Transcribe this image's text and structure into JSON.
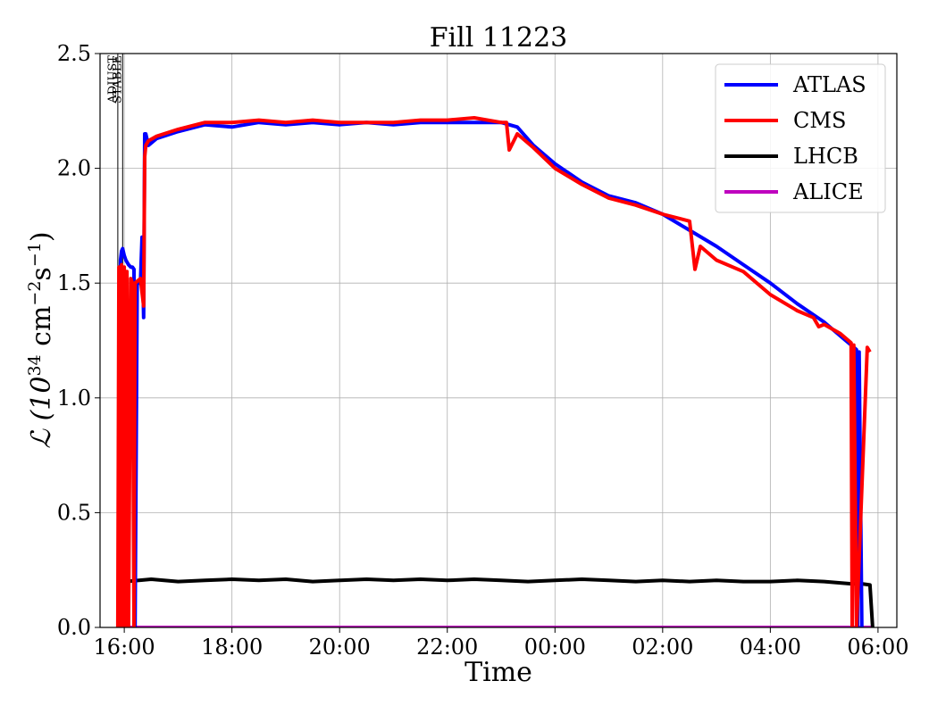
{
  "chart_data": {
    "type": "line",
    "title": "Fill 11223",
    "xlabel": "Time",
    "ylabel_main": "ℒ (10",
    "ylabel_exp1": "34",
    "ylabel_mid": " cm",
    "ylabel_exp2": "−2",
    "ylabel_s": "s",
    "ylabel_exp3": "−1",
    "ylabel_end": ")",
    "x_unit": "hours since 00:00 of the fill start day",
    "xlim": [
      15.55,
      30.35
    ],
    "ylim": [
      0,
      2.5
    ],
    "x_ticks": [
      16,
      18,
      20,
      22,
      24,
      26,
      28,
      30
    ],
    "x_tick_labels": [
      "16:00",
      "18:00",
      "20:00",
      "22:00",
      "00:00",
      "02:00",
      "04:00",
      "06:00"
    ],
    "y_ticks": [
      0,
      0.5,
      1.0,
      1.5,
      2.0,
      2.5
    ],
    "y_tick_labels": [
      "0.0",
      "0.5",
      "1.0",
      "1.5",
      "2.0",
      "2.5"
    ],
    "grid": true,
    "legend_position": "top-right",
    "markers": [
      {
        "x": 15.88,
        "label": "ADJUST"
      },
      {
        "x": 15.97,
        "label": "STABLE"
      }
    ],
    "colors": {
      "ATLAS": "#0000ff",
      "CMS": "#ff0000",
      "LHCB": "#000000",
      "ALICE": "#bf00bf"
    },
    "series": [
      {
        "name": "ATLAS",
        "x": [
          15.9,
          15.93,
          15.95,
          15.97,
          16.0,
          16.03,
          16.08,
          16.12,
          16.15,
          16.18,
          16.2,
          16.24,
          16.3,
          16.33,
          16.36,
          16.38,
          16.4,
          16.45,
          16.6,
          17.0,
          17.5,
          18.0,
          18.5,
          19.0,
          19.5,
          20.0,
          20.5,
          21.0,
          21.5,
          22.0,
          22.5,
          23.0,
          23.3,
          23.6,
          24.0,
          24.5,
          25.0,
          25.5,
          26.0,
          26.5,
          27.0,
          27.5,
          28.0,
          28.5,
          29.0,
          29.3,
          29.5,
          29.6,
          29.62,
          29.65,
          29.7
        ],
        "y": [
          0.0,
          1.6,
          1.64,
          1.65,
          1.62,
          1.6,
          1.58,
          1.57,
          1.57,
          1.56,
          0.0,
          1.5,
          1.5,
          1.7,
          1.35,
          2.15,
          2.15,
          2.1,
          2.13,
          2.16,
          2.19,
          2.18,
          2.2,
          2.19,
          2.2,
          2.19,
          2.2,
          2.19,
          2.2,
          2.2,
          2.2,
          2.2,
          2.18,
          2.1,
          2.02,
          1.94,
          1.88,
          1.85,
          1.8,
          1.73,
          1.66,
          1.58,
          1.5,
          1.41,
          1.33,
          1.27,
          1.23,
          1.21,
          0.0,
          1.2,
          0.0
        ]
      },
      {
        "name": "CMS",
        "x": [
          15.88,
          15.9,
          15.92,
          15.95,
          15.97,
          16.0,
          16.03,
          16.05,
          16.08,
          16.12,
          16.15,
          16.18,
          16.2,
          16.3,
          16.36,
          16.38,
          16.4,
          16.45,
          16.6,
          17.0,
          17.5,
          18.0,
          18.5,
          19.0,
          19.5,
          20.0,
          20.5,
          21.0,
          21.5,
          22.0,
          22.5,
          23.0,
          23.1,
          23.15,
          23.3,
          23.6,
          24.0,
          24.5,
          25.0,
          25.5,
          26.0,
          26.5,
          26.6,
          26.7,
          27.0,
          27.5,
          28.0,
          28.5,
          28.8,
          28.9,
          29.0,
          29.3,
          29.5,
          29.52,
          29.55,
          29.6,
          29.8,
          29.85
        ],
        "y": [
          0.0,
          1.57,
          0.0,
          1.58,
          0.0,
          1.57,
          0.0,
          1.55,
          0.0,
          1.52,
          1.5,
          0.0,
          1.5,
          1.52,
          1.4,
          2.05,
          2.1,
          2.12,
          2.14,
          2.17,
          2.2,
          2.2,
          2.21,
          2.2,
          2.21,
          2.2,
          2.2,
          2.2,
          2.21,
          2.21,
          2.22,
          2.2,
          2.2,
          2.08,
          2.15,
          2.09,
          2.0,
          1.93,
          1.87,
          1.84,
          1.8,
          1.77,
          1.56,
          1.66,
          1.6,
          1.55,
          1.45,
          1.38,
          1.35,
          1.31,
          1.32,
          1.28,
          1.24,
          0.0,
          1.23,
          0.0,
          1.22,
          1.2
        ]
      },
      {
        "name": "LHCB",
        "x": [
          15.9,
          15.98,
          16.0,
          16.02,
          16.5,
          17.0,
          17.5,
          18.0,
          18.5,
          19.0,
          19.5,
          20.0,
          20.5,
          21.0,
          21.5,
          22.0,
          22.5,
          23.0,
          23.5,
          24.0,
          24.5,
          25.0,
          25.5,
          26.0,
          26.5,
          27.0,
          27.5,
          28.0,
          28.5,
          29.0,
          29.5,
          29.7,
          29.85,
          29.9
        ],
        "y": [
          0.0,
          0.05,
          0.21,
          0.2,
          0.21,
          0.2,
          0.205,
          0.21,
          0.205,
          0.21,
          0.2,
          0.205,
          0.21,
          0.205,
          0.21,
          0.205,
          0.21,
          0.205,
          0.2,
          0.205,
          0.21,
          0.205,
          0.2,
          0.205,
          0.2,
          0.205,
          0.2,
          0.2,
          0.205,
          0.2,
          0.19,
          0.19,
          0.185,
          0.0
        ]
      },
      {
        "name": "ALICE",
        "x": [
          15.9,
          29.9
        ],
        "y": [
          0.0,
          0.0
        ]
      }
    ]
  }
}
